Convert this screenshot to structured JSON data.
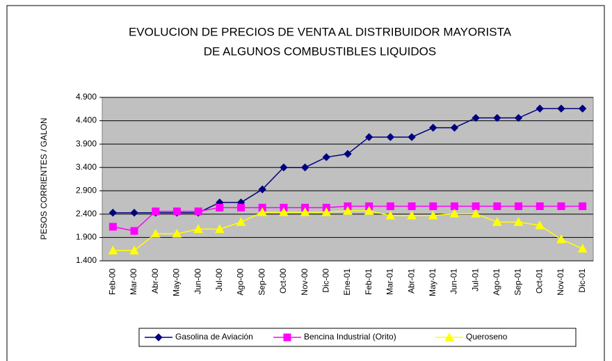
{
  "chart_data": {
    "type": "line",
    "title": "EVOLUCION DE PRECIOS DE VENTA AL DISTRIBUIDOR MAYORISTA",
    "subtitle": "DE ALGUNOS COMBUSTIBLES LIQUIDOS",
    "y_label": "PESOS CORRIENTES / GALON",
    "categories": [
      "Feb-00",
      "Mar-00",
      "Abr-00",
      "May-00",
      "Jun-00",
      "Jul-00",
      "Ago-00",
      "Sep-00",
      "Oct-00",
      "Nov-00",
      "Dic-00",
      "Ene-01",
      "Feb-01",
      "Mar-01",
      "Abr-01",
      "May-01",
      "Jun-01",
      "Jul-01",
      "Ago-01",
      "Sep-01",
      "Oct-01",
      "Nov-01",
      "Dic-01"
    ],
    "series": [
      {
        "name": "Gasolina de Aviación",
        "color": "#000080",
        "marker": "diamond",
        "values": [
          2430,
          2430,
          2430,
          2430,
          2430,
          2650,
          2650,
          2930,
          3400,
          3400,
          3620,
          3690,
          4050,
          4050,
          4050,
          4250,
          4250,
          4460,
          4460,
          4460,
          4660,
          4660,
          4660
        ]
      },
      {
        "name": "Bencina Industrial (Orito)",
        "color": "#ff00ff",
        "marker": "square",
        "values": [
          2130,
          2040,
          2460,
          2460,
          2460,
          2540,
          2540,
          2540,
          2540,
          2540,
          2540,
          2570,
          2570,
          2570,
          2570,
          2570,
          2570,
          2570,
          2570,
          2570,
          2570,
          2570,
          2570
        ]
      },
      {
        "name": "Queroseno",
        "color": "#ffff00",
        "marker": "triangle",
        "values": [
          1620,
          1620,
          1980,
          1980,
          2080,
          2080,
          2230,
          2440,
          2440,
          2440,
          2440,
          2470,
          2470,
          2370,
          2370,
          2370,
          2410,
          2410,
          2230,
          2230,
          2160,
          1860,
          1660
        ]
      }
    ],
    "ylim": [
      1400,
      4900
    ],
    "yticks": [
      {
        "value": 1400,
        "label": "1.400"
      },
      {
        "value": 1900,
        "label": "1.900"
      },
      {
        "value": 2400,
        "label": "2.400"
      },
      {
        "value": 2900,
        "label": "2.900"
      },
      {
        "value": 3400,
        "label": "3.400"
      },
      {
        "value": 3900,
        "label": "3.900"
      },
      {
        "value": 4400,
        "label": "4.400"
      },
      {
        "value": 4900,
        "label": "4.900"
      }
    ],
    "grid": true,
    "legend": "bottom"
  }
}
